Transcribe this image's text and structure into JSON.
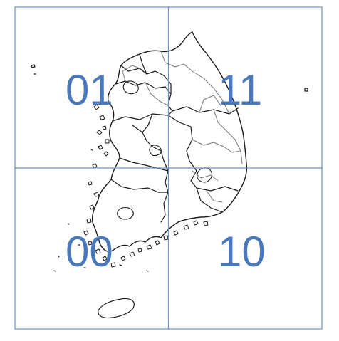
{
  "map": {
    "grid_color": "#6a90c8",
    "label_color": "#4a78bd",
    "outline_color": "#1a1a1a",
    "inner_boundary_color": "#777777",
    "quadrants": [
      {
        "id": "top-left",
        "label": "01"
      },
      {
        "id": "top-right",
        "label": "11"
      },
      {
        "id": "bottom-left",
        "label": "00"
      },
      {
        "id": "bottom-right",
        "label": "10"
      }
    ]
  }
}
